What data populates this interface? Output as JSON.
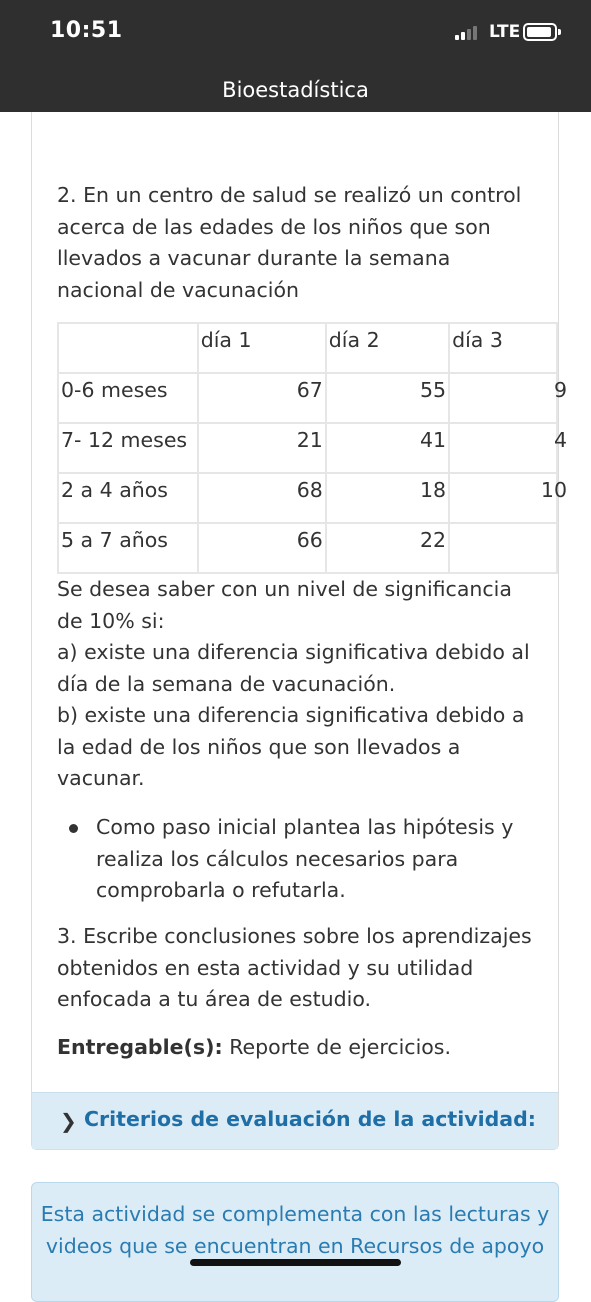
{
  "status_bar": {
    "time": "10:51",
    "network": "LTE"
  },
  "header": {
    "title": "Bioestadística"
  },
  "question2": {
    "text": "2. En un centro de salud se realizó un control acerca de las edades de los niños que son llevados a vacunar durante la semana nacional de vacunación",
    "table": {
      "columns": [
        "",
        "día 1",
        "día 2",
        "día 3"
      ],
      "rows": [
        [
          "0-6 meses",
          "67",
          "55",
          "9"
        ],
        [
          "7- 12 meses",
          "21",
          "41",
          "4"
        ],
        [
          "2 a 4 años",
          "68",
          "18",
          "10"
        ],
        [
          "5 a 7 años",
          "66",
          "22",
          ""
        ]
      ]
    },
    "intro": "Se desea saber con un nivel de significancia de 10% si:",
    "part_a": "a) existe una diferencia significativa debido al día de la semana de vacunación.",
    "part_b": "b) existe una diferencia significativa debido a la edad de los niños que son llevados a vacunar.",
    "bullet": "Como paso inicial plantea las hipótesis y realiza los cálculos necesarios para comprobarla o refutarla."
  },
  "question3": {
    "text": "3.  Escribe conclusiones sobre los aprendizajes obtenidos en esta actividad y su utilidad enfocada a tu área de estudio."
  },
  "deliverable": {
    "label": "Entregable(s):",
    "value": "Reporte de ejercicios."
  },
  "criteria": {
    "label": "Criterios de evaluación de la actividad:"
  },
  "info_box": {
    "text": "Esta actividad se complementa con las lecturas y videos que se encuentran en Recursos de apoyo"
  },
  "icons": {
    "signal": "cellular-signal-icon",
    "battery": "battery-icon",
    "chevron": "chevron-right-icon"
  }
}
